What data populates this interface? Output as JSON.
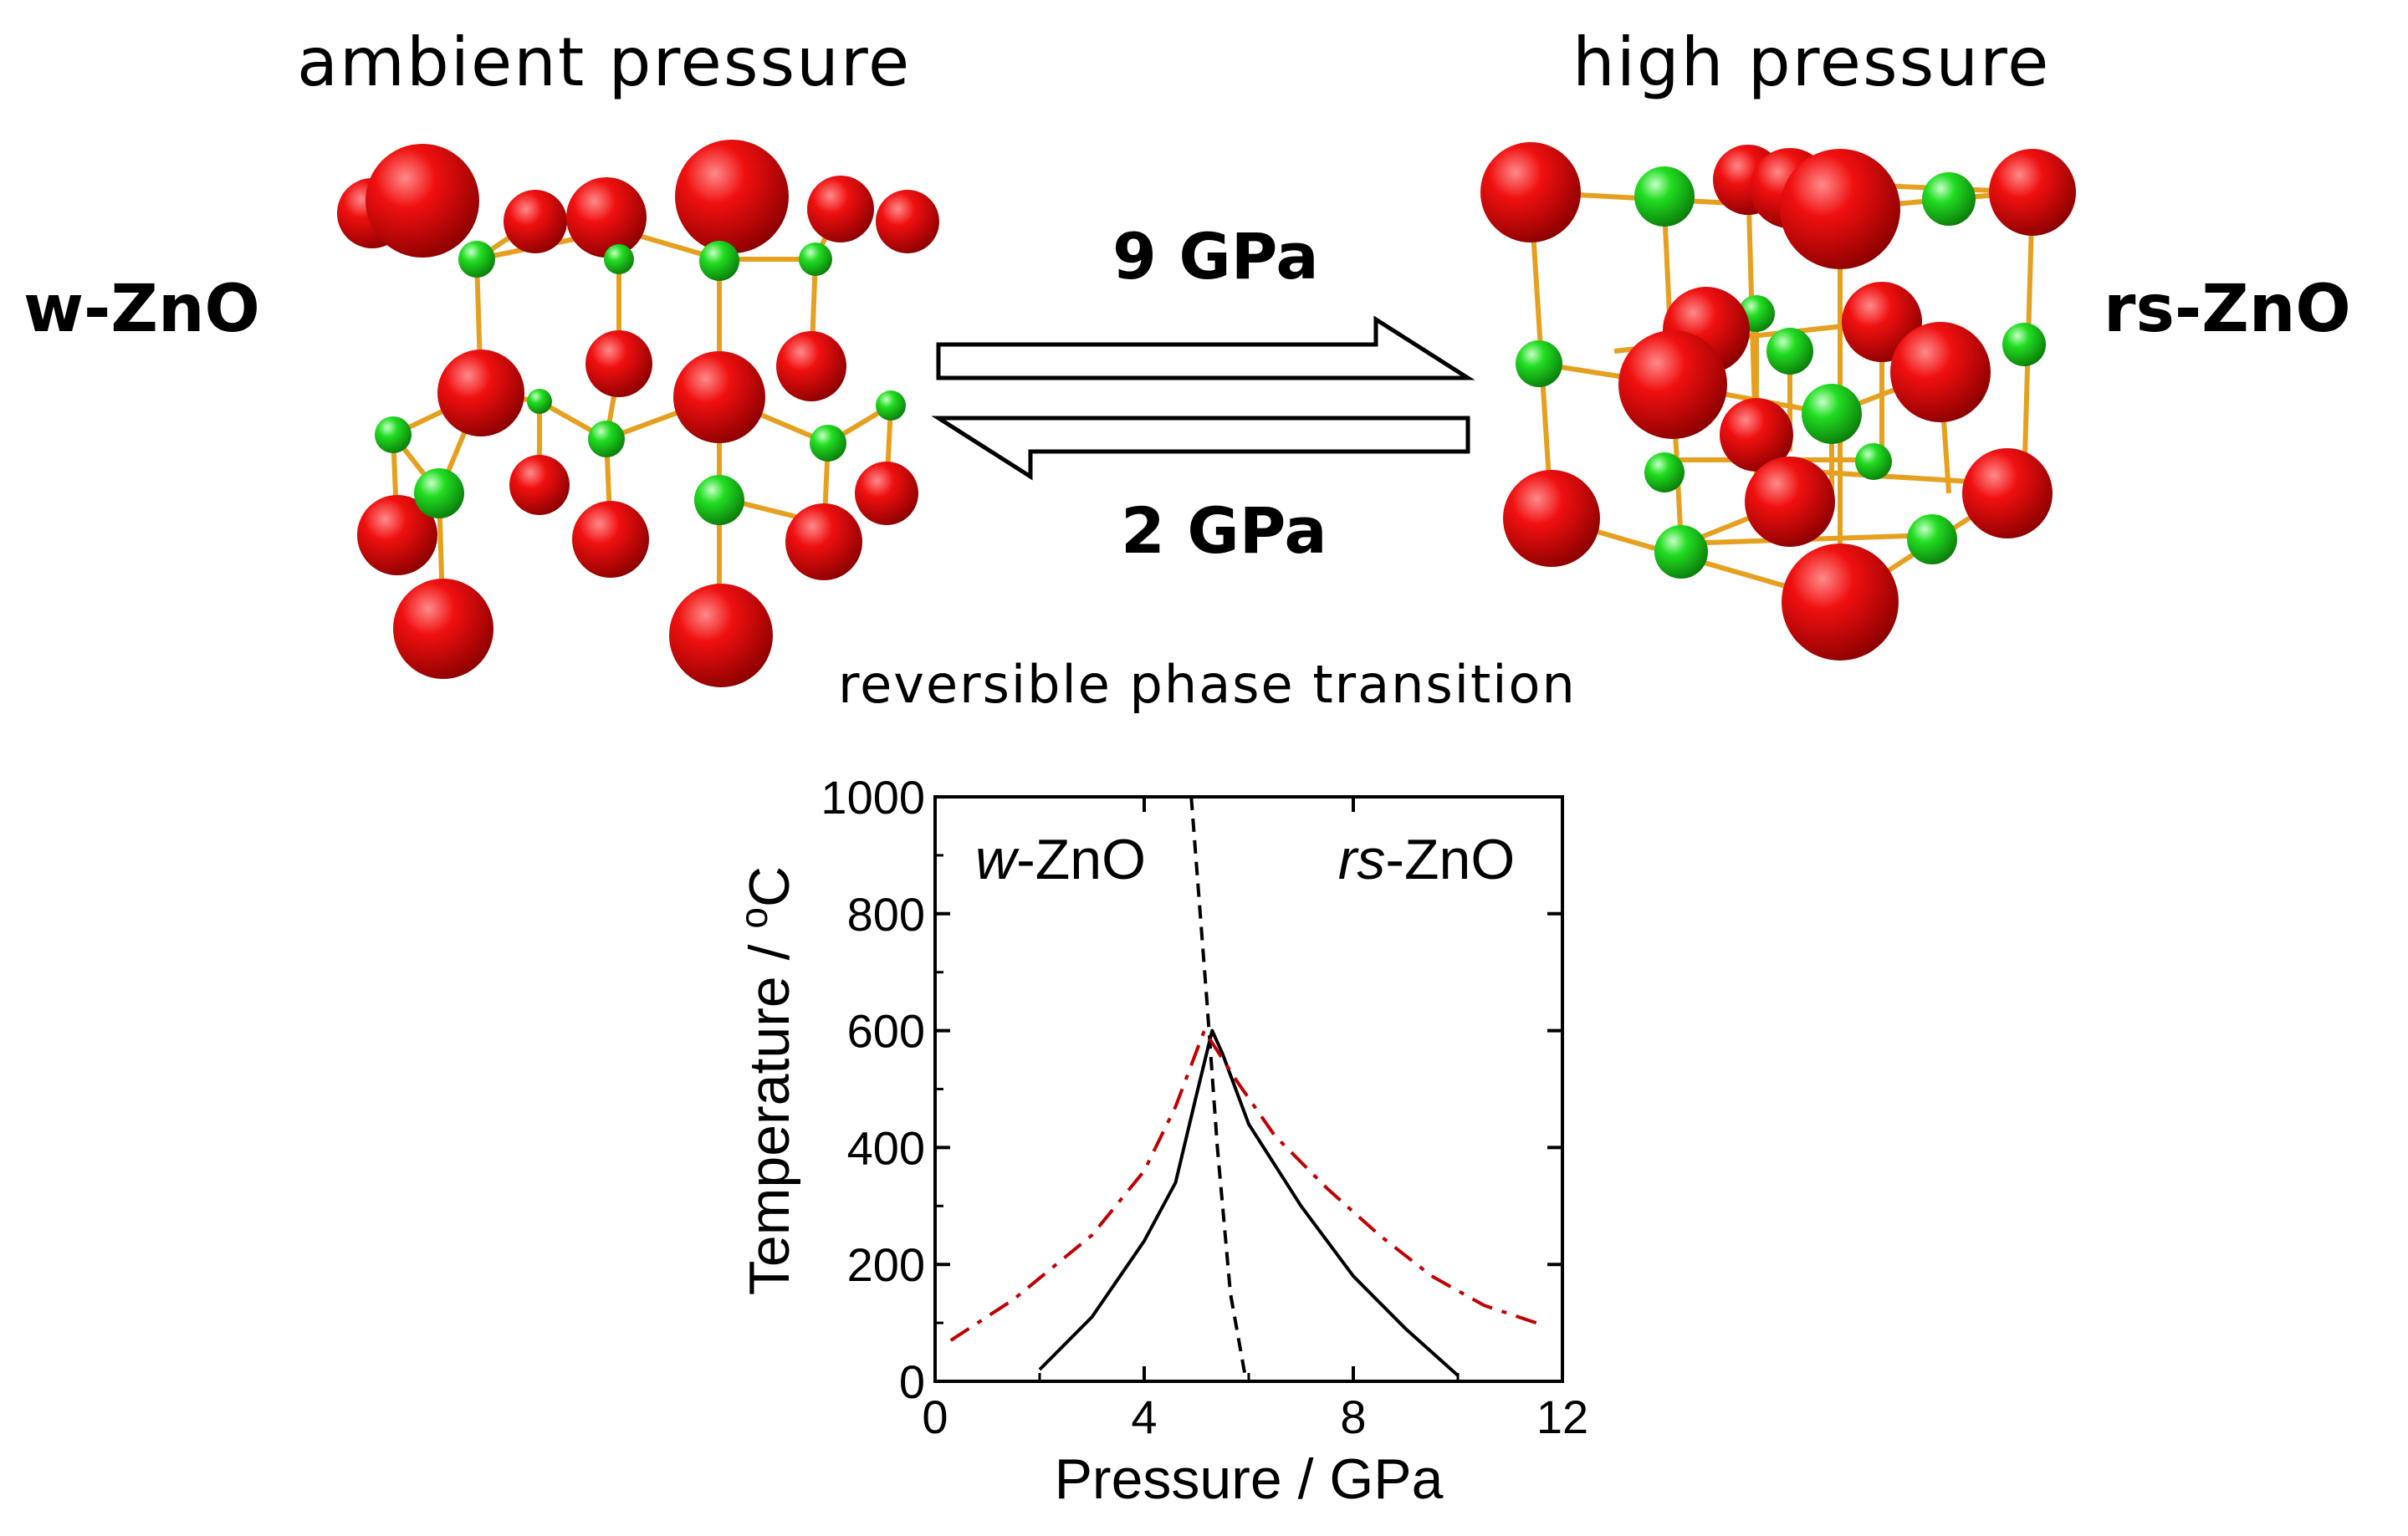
{
  "header": {
    "ambient_label": "ambient pressure",
    "high_label": "high pressure"
  },
  "phases": {
    "left_name": "w-ZnO",
    "right_name": "rs-ZnO"
  },
  "arrows": {
    "forward_label": "9 GPa",
    "backward_label": "2 GPa"
  },
  "caption": "reversible phase transition",
  "colors": {
    "oxygen_atom": "#e00000",
    "zinc_atom": "#1ed21e",
    "bond": "#e6a020",
    "dash_dot_curve": "#c00000"
  },
  "chart_data": {
    "type": "line",
    "xlabel": "Pressure / GPa",
    "ylabel_prefix": "Temperature / ",
    "ylabel_sup": "o",
    "ylabel_suffix": "C",
    "xlim": [
      0,
      12
    ],
    "ylim": [
      0,
      1000
    ],
    "xticks": [
      0,
      4,
      8,
      12
    ],
    "yticks": [
      0,
      200,
      400,
      600,
      800,
      1000
    ],
    "region_labels": [
      {
        "italic": "w",
        "rest": "-ZnO",
        "x": 2.4,
        "y": 860
      },
      {
        "italic": "rs",
        "rest": "-ZnO",
        "x": 9.4,
        "y": 860
      }
    ],
    "series": [
      {
        "style": "dashed",
        "color": "#000000",
        "points": [
          [
            4.9,
            1000
          ],
          [
            5.2,
            650
          ],
          [
            5.4,
            400
          ],
          [
            5.65,
            150
          ],
          [
            5.95,
            0
          ]
        ]
      },
      {
        "style": "solid",
        "color": "#000000",
        "points": [
          [
            2.0,
            20
          ],
          [
            3.0,
            110
          ],
          [
            4.0,
            240
          ],
          [
            4.6,
            340
          ],
          [
            5.0,
            490
          ],
          [
            5.3,
            600
          ],
          [
            5.5,
            560
          ],
          [
            6.0,
            440
          ],
          [
            7.0,
            300
          ],
          [
            8.0,
            180
          ],
          [
            9.0,
            90
          ],
          [
            10.0,
            10
          ]
        ]
      },
      {
        "style": "dashdot",
        "color": "#c00000",
        "points": [
          [
            0.3,
            70
          ],
          [
            1.5,
            140
          ],
          [
            3.0,
            250
          ],
          [
            4.0,
            360
          ],
          [
            4.6,
            470
          ],
          [
            5.15,
            600
          ],
          [
            5.8,
            510
          ],
          [
            6.5,
            420
          ],
          [
            7.5,
            330
          ],
          [
            8.5,
            250
          ],
          [
            9.5,
            180
          ],
          [
            10.5,
            130
          ],
          [
            11.5,
            100
          ]
        ]
      }
    ]
  }
}
